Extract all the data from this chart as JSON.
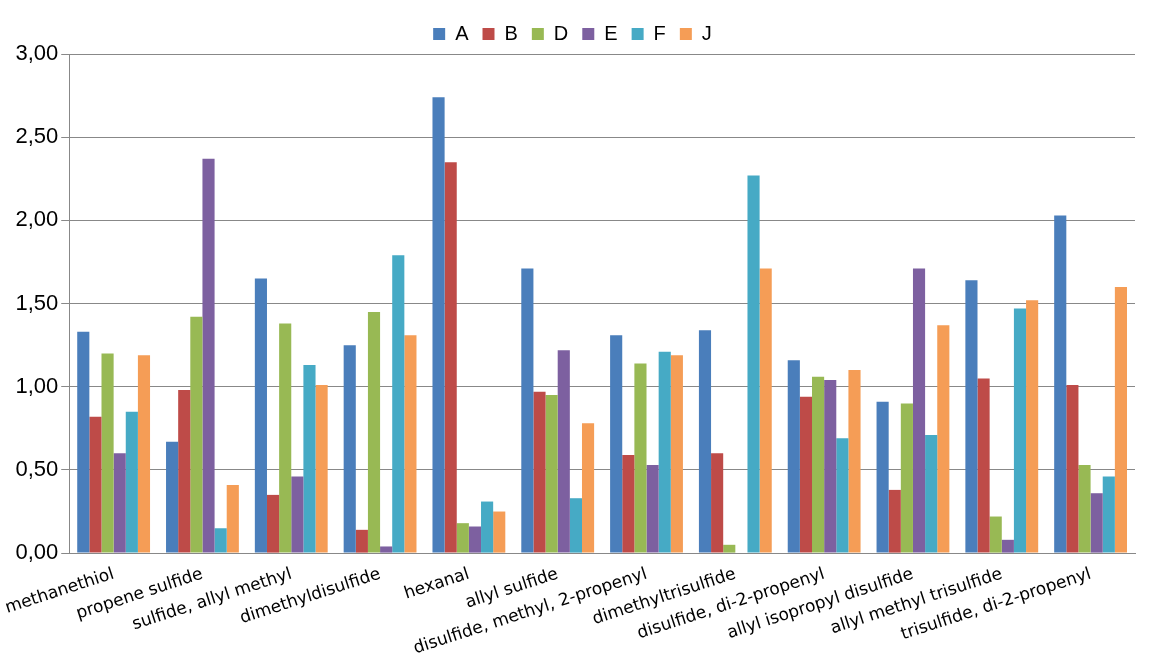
{
  "chart_data": {
    "type": "bar",
    "categories": [
      "methanethiol",
      "propene sulfide",
      "sulfide, allyl methyl",
      "dimethyldisulfide",
      "hexanal",
      "allyl sulfide",
      "disulfide, methyl, 2-propenyl",
      "dimethyltrisulfide",
      "disulfide, di-2-propenyl",
      "allyl isopropyl disulfide",
      "allyl methyl trisulfide",
      "trisulfide, di-2-propenyl"
    ],
    "series": [
      {
        "name": "A",
        "color": "#4a7ebb",
        "values": [
          1.33,
          0.67,
          1.65,
          1.25,
          2.74,
          1.71,
          1.31,
          1.34,
          1.16,
          0.91,
          1.64,
          2.03
        ]
      },
      {
        "name": "B",
        "color": "#be4b48",
        "values": [
          0.82,
          0.98,
          0.35,
          0.14,
          2.35,
          0.97,
          0.59,
          0.6,
          0.94,
          0.38,
          1.05,
          1.01
        ]
      },
      {
        "name": "D",
        "color": "#98b954",
        "values": [
          1.2,
          1.42,
          1.38,
          1.45,
          0.18,
          0.95,
          1.14,
          0.05,
          1.06,
          0.9,
          0.22,
          0.53
        ]
      },
      {
        "name": "E",
        "color": "#7d60a0",
        "values": [
          0.6,
          2.37,
          0.46,
          0.04,
          0.16,
          1.22,
          0.53,
          0,
          1.04,
          1.71,
          0.08,
          0.36
        ]
      },
      {
        "name": "F",
        "color": "#46aac5",
        "values": [
          0.85,
          0.15,
          1.13,
          1.79,
          0.31,
          0.33,
          1.21,
          2.27,
          0.69,
          0.71,
          1.47,
          0.46
        ]
      },
      {
        "name": "J",
        "color": "#f59d56",
        "values": [
          1.19,
          0.41,
          1.01,
          1.31,
          0.25,
          0.78,
          1.19,
          1.71,
          1.1,
          1.37,
          1.52,
          1.6
        ]
      }
    ],
    "ylim": [
      0,
      3
    ],
    "yticks": [
      {
        "value": 0,
        "label": "0,00"
      },
      {
        "value": 0.5,
        "label": "0,50"
      },
      {
        "value": 1,
        "label": "1,00"
      },
      {
        "value": 1.5,
        "label": "1,50"
      },
      {
        "value": 2,
        "label": "2,00"
      },
      {
        "value": 2.5,
        "label": "2,50"
      },
      {
        "value": 3,
        "label": "3,00"
      }
    ],
    "grid": "y",
    "legend": "top"
  }
}
